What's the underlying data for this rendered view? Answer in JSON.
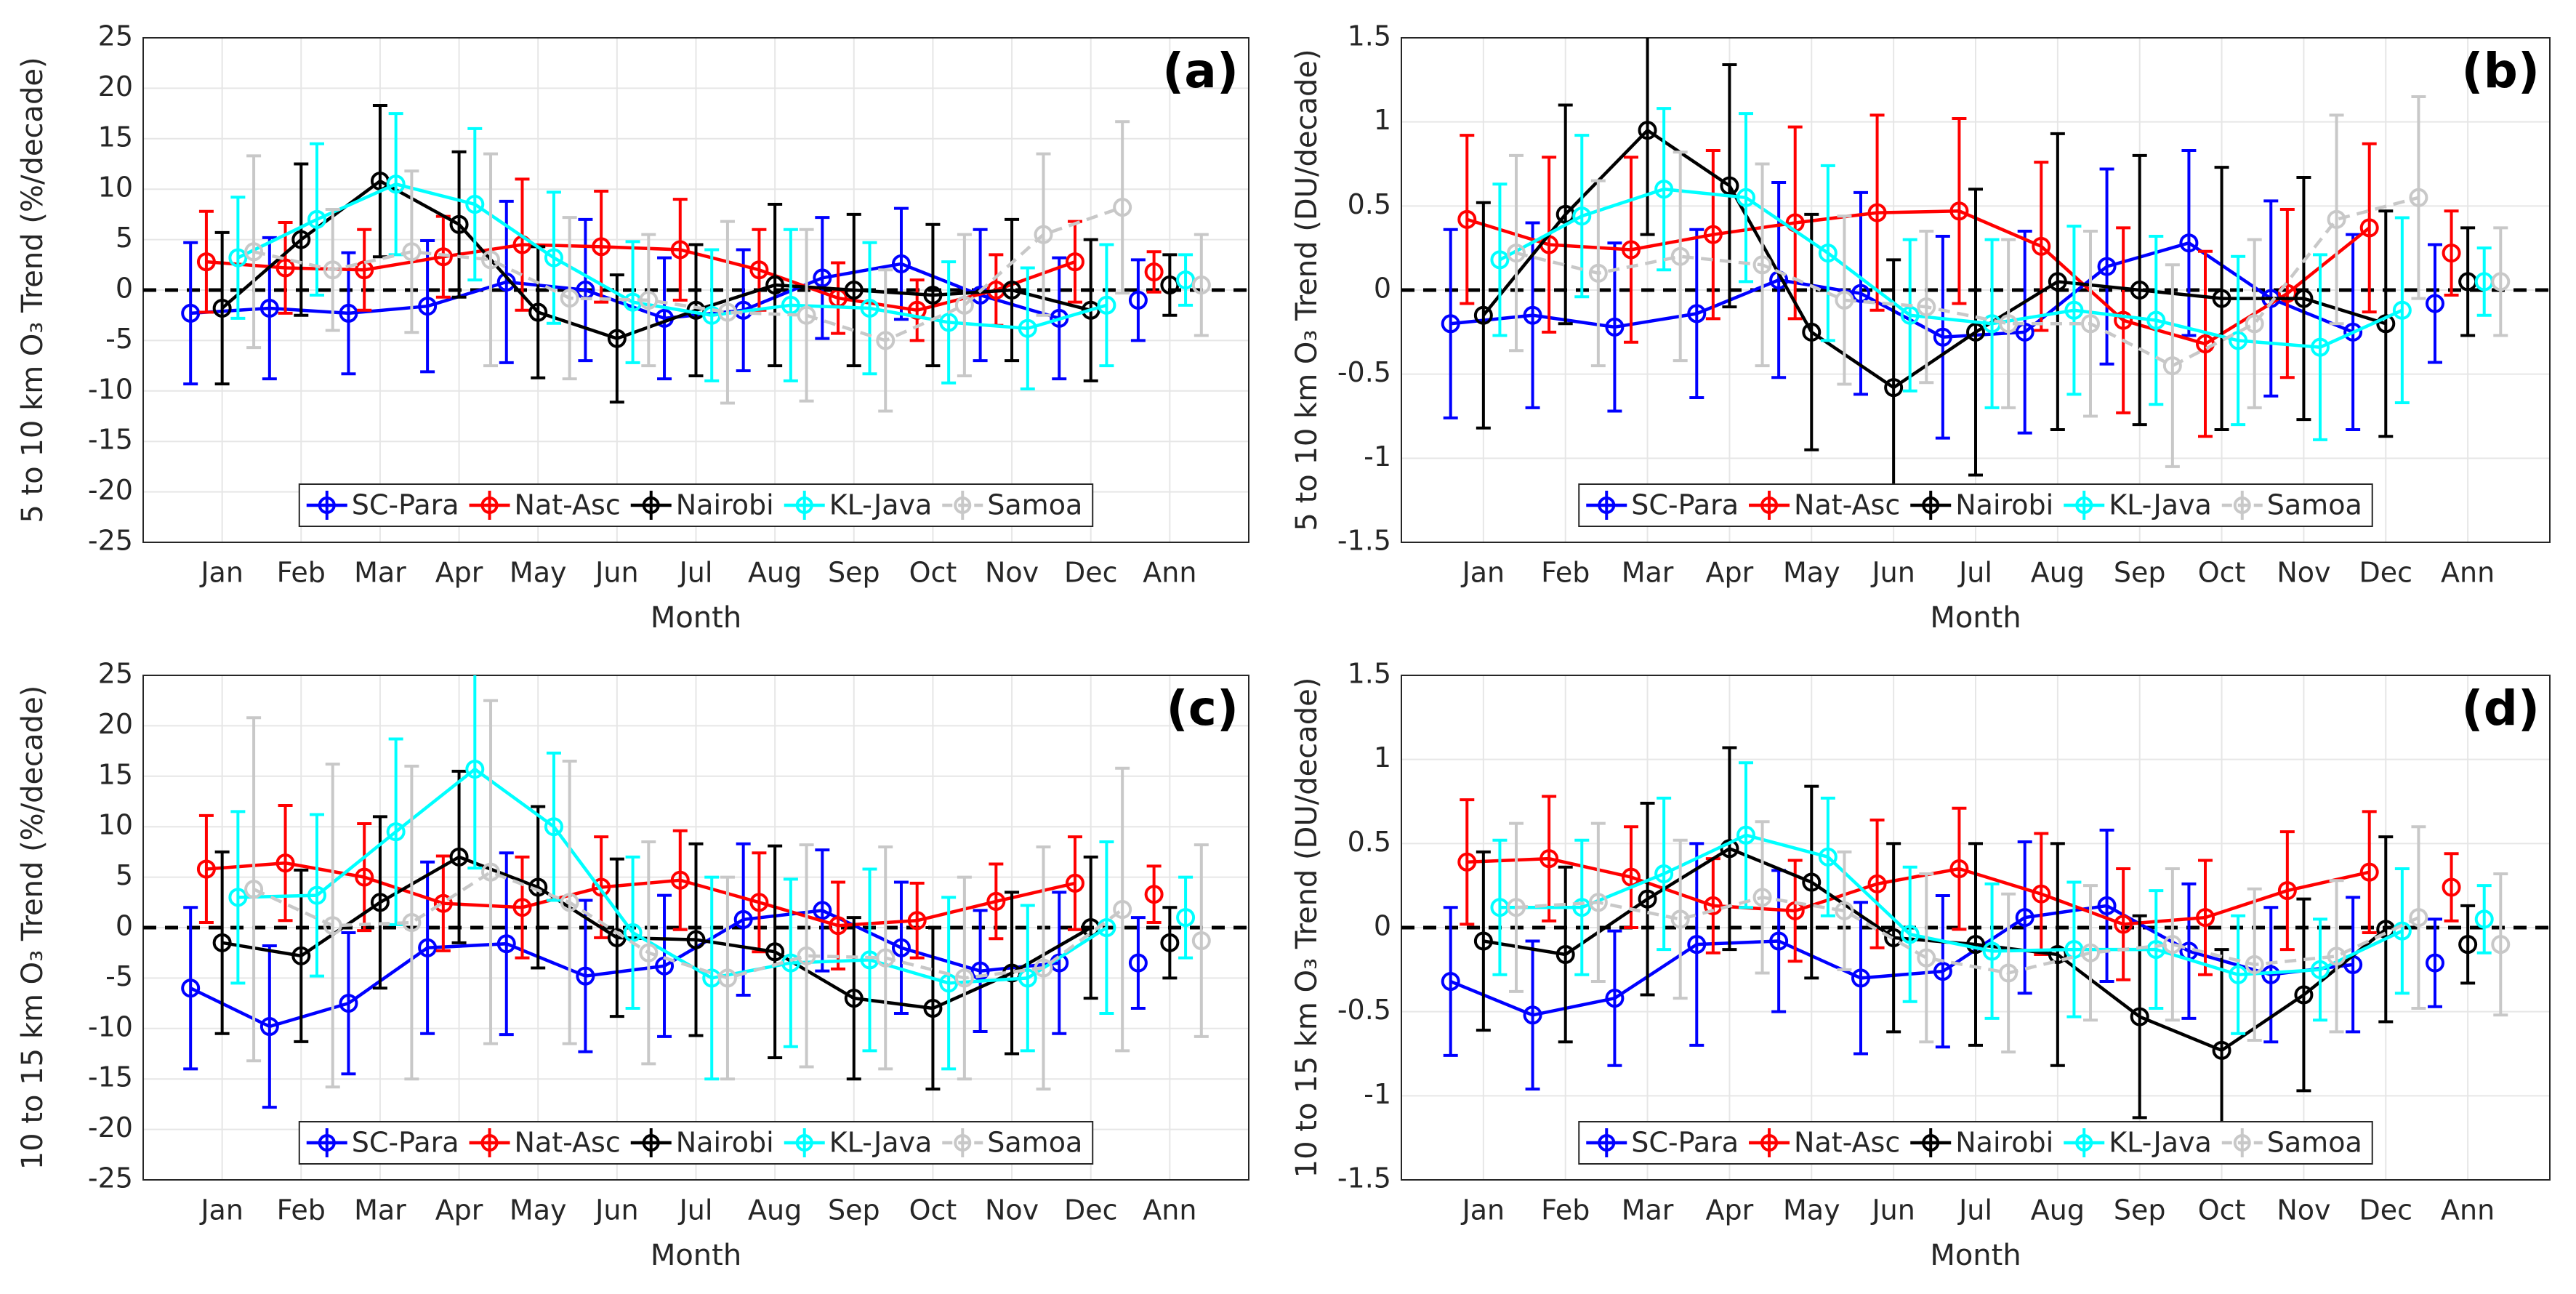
{
  "chart_data": [
    {
      "type": "line",
      "panel_label": "(a)",
      "ylabel": "5 to 10 km O₃ Trend (%/decade)",
      "xlabel": "Month",
      "categories": [
        "Jan",
        "Feb",
        "Mar",
        "Apr",
        "May",
        "Jun",
        "Jul",
        "Aug",
        "Sep",
        "Oct",
        "Nov",
        "Dec",
        "Ann"
      ],
      "ylim": [
        -25,
        25
      ],
      "yticks": [
        -25,
        -20,
        -15,
        -10,
        -5,
        0,
        5,
        10,
        15,
        20,
        25
      ],
      "grid": true,
      "zero_line": true,
      "annual_separate": true,
      "legend": "lower center",
      "series": [
        {
          "name": "SC-Para",
          "color": "#0000ff",
          "values": [
            -2.3,
            -1.8,
            -2.3,
            -1.6,
            0.8,
            0,
            -2.8,
            -2,
            1.2,
            2.6,
            -0.5,
            -2.8,
            -1
          ],
          "errors": [
            7,
            7,
            6,
            6.5,
            8,
            7,
            6,
            6,
            6,
            5.5,
            6.5,
            6,
            4
          ]
        },
        {
          "name": "Nat-Asc",
          "color": "#ff0000",
          "values": [
            2.8,
            2.2,
            2,
            3.3,
            4.5,
            4.3,
            4,
            2,
            -0.8,
            -2,
            0,
            2.8,
            1.8
          ],
          "errors": [
            5,
            4.5,
            4,
            4,
            6.5,
            5.5,
            5,
            4,
            3.5,
            3,
            3.5,
            4,
            2
          ]
        },
        {
          "name": "Nairobi",
          "color": "#000000",
          "values": [
            -1.8,
            5,
            10.8,
            6.5,
            -2.2,
            -4.8,
            -2,
            0.5,
            0,
            -0.5,
            0,
            -2,
            0.5
          ],
          "errors": [
            7.5,
            7.5,
            7.5,
            7.2,
            6.5,
            6.3,
            6.5,
            8,
            7.5,
            7,
            7,
            7,
            3
          ]
        },
        {
          "name": "KL-Java",
          "color": "#00ffff",
          "values": [
            3.2,
            7,
            10.5,
            8.5,
            3.2,
            -1.2,
            -2.5,
            -1.5,
            -1.8,
            -3.2,
            -3.8,
            -1.5,
            1
          ],
          "errors": [
            6,
            7.5,
            7,
            7.5,
            6.5,
            6,
            6.5,
            7.5,
            6.5,
            6,
            6,
            6,
            2.5
          ]
        },
        {
          "name": "Samoa",
          "color": "#c8c8c8",
          "dashed": true,
          "values": [
            3.8,
            2,
            3.8,
            3,
            -0.8,
            -1,
            -2.2,
            -2.5,
            -5,
            -1.5,
            5.5,
            8.2,
            0.5
          ],
          "errors": [
            9.5,
            6,
            8,
            10.5,
            8,
            6.5,
            9,
            8.5,
            7,
            7,
            8,
            8.5,
            5
          ]
        }
      ]
    },
    {
      "type": "line",
      "panel_label": "(b)",
      "ylabel": "5 to 10 km O₃ Trend (DU/decade)",
      "xlabel": "Month",
      "categories": [
        "Jan",
        "Feb",
        "Mar",
        "Apr",
        "May",
        "Jun",
        "Jul",
        "Aug",
        "Sep",
        "Oct",
        "Nov",
        "Dec",
        "Ann"
      ],
      "ylim": [
        -1.5,
        1.5
      ],
      "yticks": [
        -1.5,
        -1,
        -0.5,
        0,
        0.5,
        1,
        1.5
      ],
      "grid": true,
      "zero_line": true,
      "annual_separate": true,
      "legend": "lower center",
      "series": [
        {
          "name": "SC-Para",
          "color": "#0000ff",
          "values": [
            -0.2,
            -0.15,
            -0.22,
            -0.14,
            0.06,
            -0.02,
            -0.28,
            -0.25,
            0.14,
            0.28,
            -0.05,
            -0.25,
            -0.08
          ],
          "errors": [
            0.56,
            0.55,
            0.5,
            0.5,
            0.58,
            0.6,
            0.6,
            0.6,
            0.58,
            0.55,
            0.58,
            0.58,
            0.35
          ]
        },
        {
          "name": "Nat-Asc",
          "color": "#ff0000",
          "values": [
            0.42,
            0.27,
            0.24,
            0.33,
            0.4,
            0.46,
            0.47,
            0.26,
            -0.18,
            -0.32,
            -0.02,
            0.37,
            0.22
          ],
          "errors": [
            0.5,
            0.52,
            0.55,
            0.5,
            0.57,
            0.58,
            0.55,
            0.5,
            0.55,
            0.55,
            0.5,
            0.5,
            0.25
          ]
        },
        {
          "name": "Nairobi",
          "color": "#000000",
          "values": [
            -0.15,
            0.45,
            0.95,
            0.62,
            -0.25,
            -0.58,
            -0.25,
            0.05,
            0,
            -0.05,
            -0.05,
            -0.2,
            0.05
          ],
          "errors": [
            0.67,
            0.65,
            0.62,
            0.72,
            0.7,
            0.76,
            0.85,
            0.88,
            0.8,
            0.78,
            0.72,
            0.67,
            0.32
          ]
        },
        {
          "name": "KL-Java",
          "color": "#00ffff",
          "values": [
            0.18,
            0.44,
            0.6,
            0.55,
            0.22,
            -0.15,
            -0.2,
            -0.12,
            -0.18,
            -0.3,
            -0.34,
            -0.12,
            0.05
          ],
          "errors": [
            0.45,
            0.48,
            0.48,
            0.5,
            0.52,
            0.45,
            0.5,
            0.5,
            0.5,
            0.5,
            0.55,
            0.55,
            0.2
          ]
        },
        {
          "name": "Samoa",
          "color": "#c8c8c8",
          "dashed": true,
          "values": [
            0.22,
            0.1,
            0.2,
            0.15,
            -0.06,
            -0.1,
            -0.2,
            -0.2,
            -0.45,
            -0.2,
            0.42,
            0.55,
            0.05
          ],
          "errors": [
            0.58,
            0.55,
            0.62,
            0.6,
            0.5,
            0.45,
            0.5,
            0.55,
            0.6,
            0.5,
            0.62,
            0.6,
            0.32
          ]
        }
      ]
    },
    {
      "type": "line",
      "panel_label": "(c)",
      "ylabel": "10 to 15 km O₃ Trend (%/decade)",
      "xlabel": "Month",
      "categories": [
        "Jan",
        "Feb",
        "Mar",
        "Apr",
        "May",
        "Jun",
        "Jul",
        "Aug",
        "Sep",
        "Oct",
        "Nov",
        "Dec",
        "Ann"
      ],
      "ylim": [
        -25,
        25
      ],
      "yticks": [
        -25,
        -20,
        -15,
        -10,
        -5,
        0,
        5,
        10,
        15,
        20,
        25
      ],
      "grid": true,
      "zero_line": true,
      "annual_separate": true,
      "legend": "lower center",
      "series": [
        {
          "name": "SC-Para",
          "color": "#0000ff",
          "values": [
            -6,
            -9.8,
            -7.5,
            -2,
            -1.6,
            -4.8,
            -3.8,
            0.8,
            1.7,
            -2,
            -4.3,
            -3.5,
            -3.5
          ],
          "errors": [
            8,
            8,
            7,
            8.5,
            9,
            7.5,
            7,
            7.5,
            6,
            6.5,
            6,
            7,
            4.5
          ]
        },
        {
          "name": "Nat-Asc",
          "color": "#ff0000",
          "values": [
            5.8,
            6.4,
            5,
            2.4,
            2,
            4,
            4.7,
            2.5,
            0.2,
            0.7,
            2.6,
            4.4,
            3.3
          ],
          "errors": [
            5.3,
            5.7,
            5.3,
            4.7,
            5,
            5,
            4.9,
            4.9,
            4.3,
            3.7,
            3.7,
            4.6,
            2.8
          ]
        },
        {
          "name": "Nairobi",
          "color": "#000000",
          "values": [
            -1.5,
            -2.8,
            2.5,
            7,
            4,
            -1,
            -1.2,
            -2.4,
            -7,
            -8,
            -4.5,
            0,
            -1.5
          ],
          "errors": [
            9,
            8.5,
            8.5,
            8.5,
            8,
            7.8,
            9.5,
            10.5,
            8,
            8,
            8,
            7,
            3.5
          ]
        },
        {
          "name": "KL-Java",
          "color": "#00ffff",
          "values": [
            3,
            3.2,
            9.5,
            15.7,
            10,
            -0.5,
            -5,
            -3.5,
            -3.2,
            -5.5,
            -5,
            0,
            1
          ],
          "errors": [
            8.5,
            8,
            9.2,
            9.8,
            7.3,
            7.5,
            10,
            8.3,
            9,
            8.5,
            7.2,
            8.5,
            4
          ]
        },
        {
          "name": "Samoa",
          "color": "#c8c8c8",
          "dashed": true,
          "values": [
            3.8,
            0.2,
            0.5,
            5.5,
            2.5,
            -2.5,
            -5,
            -2.8,
            -3,
            -5,
            -4,
            1.8,
            -1.3
          ],
          "errors": [
            17,
            16,
            15.5,
            17,
            14,
            11,
            10,
            11,
            11,
            10,
            12,
            14,
            9.5
          ]
        }
      ]
    },
    {
      "type": "line",
      "panel_label": "(d)",
      "ylabel": "10 to 15 km O₃ Trend (DU/decade)",
      "xlabel": "Month",
      "categories": [
        "Jan",
        "Feb",
        "Mar",
        "Apr",
        "May",
        "Jun",
        "Jul",
        "Aug",
        "Sep",
        "Oct",
        "Nov",
        "Dec",
        "Ann"
      ],
      "ylim": [
        -1.5,
        1.5
      ],
      "yticks": [
        -1.5,
        -1,
        -0.5,
        0,
        0.5,
        1,
        1.5
      ],
      "grid": true,
      "zero_line": true,
      "annual_separate": true,
      "legend": "lower center",
      "series": [
        {
          "name": "SC-Para",
          "color": "#0000ff",
          "values": [
            -0.32,
            -0.52,
            -0.42,
            -0.1,
            -0.08,
            -0.3,
            -0.26,
            0.06,
            0.13,
            -0.14,
            -0.28,
            -0.22,
            -0.21
          ],
          "errors": [
            0.44,
            0.44,
            0.4,
            0.6,
            0.42,
            0.45,
            0.45,
            0.45,
            0.45,
            0.4,
            0.4,
            0.4,
            0.26
          ]
        },
        {
          "name": "Nat-Asc",
          "color": "#ff0000",
          "values": [
            0.39,
            0.41,
            0.3,
            0.13,
            0.1,
            0.26,
            0.35,
            0.2,
            0.02,
            0.06,
            0.22,
            0.33,
            0.24
          ],
          "errors": [
            0.37,
            0.37,
            0.3,
            0.28,
            0.3,
            0.38,
            0.36,
            0.36,
            0.33,
            0.34,
            0.35,
            0.36,
            0.2
          ]
        },
        {
          "name": "Nairobi",
          "color": "#000000",
          "values": [
            -0.08,
            -0.16,
            0.17,
            0.47,
            0.27,
            -0.06,
            -0.1,
            -0.16,
            -0.53,
            -0.73,
            -0.4,
            -0.01,
            -0.1
          ],
          "errors": [
            0.53,
            0.52,
            0.57,
            0.6,
            0.57,
            0.56,
            0.6,
            0.66,
            0.6,
            0.6,
            0.57,
            0.55,
            0.23
          ]
        },
        {
          "name": "KL-Java",
          "color": "#00ffff",
          "values": [
            0.12,
            0.12,
            0.32,
            0.55,
            0.42,
            -0.04,
            -0.14,
            -0.13,
            -0.13,
            -0.28,
            -0.25,
            -0.02,
            0.05
          ],
          "errors": [
            0.4,
            0.4,
            0.45,
            0.43,
            0.35,
            0.4,
            0.4,
            0.4,
            0.35,
            0.35,
            0.3,
            0.37,
            0.2
          ]
        },
        {
          "name": "Samoa",
          "color": "#c8c8c8",
          "dashed": true,
          "values": [
            0.12,
            0.15,
            0.05,
            0.18,
            0.1,
            -0.18,
            -0.27,
            -0.15,
            -0.1,
            -0.22,
            -0.17,
            0.06,
            -0.1
          ],
          "errors": [
            0.5,
            0.47,
            0.47,
            0.45,
            0.35,
            0.5,
            0.47,
            0.4,
            0.45,
            0.45,
            0.45,
            0.54,
            0.42
          ]
        }
      ]
    }
  ]
}
